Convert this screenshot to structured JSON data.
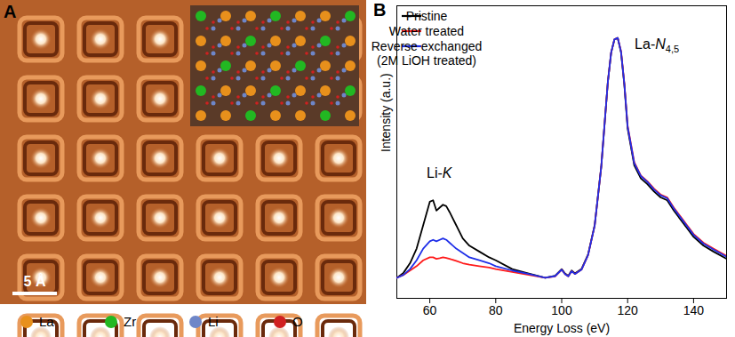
{
  "image_panel": {
    "panel_label": "A",
    "scale_bar": "5 Å",
    "legend": [
      {
        "name": "La",
        "color": "#e8901c"
      },
      {
        "name": "Zr",
        "color": "#22b822"
      },
      {
        "name": "Li",
        "color": "#6e86c8"
      },
      {
        "name": "O",
        "color": "#d02020"
      }
    ]
  },
  "chart_data": {
    "type": "line",
    "panel_label": "B",
    "x_label": "Energy Loss (eV)",
    "y_label": "Intensity (a.u.)",
    "xlim": [
      50,
      150
    ],
    "xticks": [
      60,
      80,
      100,
      120,
      140
    ],
    "ylim": [
      0,
      1
    ],
    "tick_labels": "x",
    "legend": "top-left",
    "annotations": [
      {
        "text": "Li-K",
        "x": 63,
        "y": 0.41
      },
      {
        "text": "La-N4,5",
        "x": 129,
        "y": 0.85
      }
    ],
    "x": [
      50,
      52,
      54,
      56,
      58,
      60,
      61,
      62,
      63,
      64,
      65,
      66,
      68,
      70,
      72,
      75,
      78,
      80,
      85,
      90,
      95,
      98,
      100,
      101,
      102,
      103,
      104,
      106,
      108,
      110,
      112,
      114,
      115,
      116,
      117,
      118,
      119,
      120,
      122,
      124,
      126,
      128,
      130,
      132,
      134,
      136,
      138,
      140,
      143,
      146,
      150
    ],
    "series": [
      {
        "name": "Pristine",
        "color": "#000000",
        "values": [
          0.07,
          0.087,
          0.12,
          0.17,
          0.25,
          0.33,
          0.335,
          0.3,
          0.31,
          0.32,
          0.315,
          0.295,
          0.25,
          0.205,
          0.18,
          0.16,
          0.14,
          0.13,
          0.1,
          0.085,
          0.07,
          0.077,
          0.1,
          0.085,
          0.077,
          0.095,
          0.085,
          0.1,
          0.15,
          0.25,
          0.45,
          0.74,
          0.84,
          0.885,
          0.89,
          0.84,
          0.73,
          0.58,
          0.455,
          0.41,
          0.39,
          0.365,
          0.345,
          0.335,
          0.3,
          0.27,
          0.24,
          0.21,
          0.18,
          0.16,
          0.135
        ]
      },
      {
        "name": "Water treated",
        "color": "#ff1a1a",
        "values": [
          0.07,
          0.08,
          0.095,
          0.11,
          0.13,
          0.14,
          0.14,
          0.135,
          0.137,
          0.14,
          0.138,
          0.135,
          0.128,
          0.12,
          0.115,
          0.11,
          0.105,
          0.1,
          0.09,
          0.08,
          0.07,
          0.075,
          0.098,
          0.083,
          0.075,
          0.093,
          0.083,
          0.098,
          0.148,
          0.248,
          0.45,
          0.74,
          0.84,
          0.885,
          0.89,
          0.845,
          0.735,
          0.59,
          0.465,
          0.42,
          0.4,
          0.375,
          0.355,
          0.345,
          0.31,
          0.28,
          0.25,
          0.22,
          0.19,
          0.17,
          0.145
        ]
      },
      {
        "name": "Reverse exchanged\n(2M LiOH treated)",
        "color": "#1f2fe8",
        "values": [
          0.07,
          0.08,
          0.1,
          0.13,
          0.17,
          0.195,
          0.2,
          0.195,
          0.2,
          0.205,
          0.2,
          0.19,
          0.17,
          0.155,
          0.14,
          0.13,
          0.12,
          0.11,
          0.095,
          0.083,
          0.07,
          0.076,
          0.098,
          0.083,
          0.075,
          0.093,
          0.083,
          0.098,
          0.148,
          0.248,
          0.45,
          0.74,
          0.84,
          0.885,
          0.89,
          0.843,
          0.733,
          0.587,
          0.462,
          0.418,
          0.398,
          0.372,
          0.352,
          0.342,
          0.307,
          0.277,
          0.247,
          0.217,
          0.187,
          0.167,
          0.142
        ]
      }
    ]
  }
}
